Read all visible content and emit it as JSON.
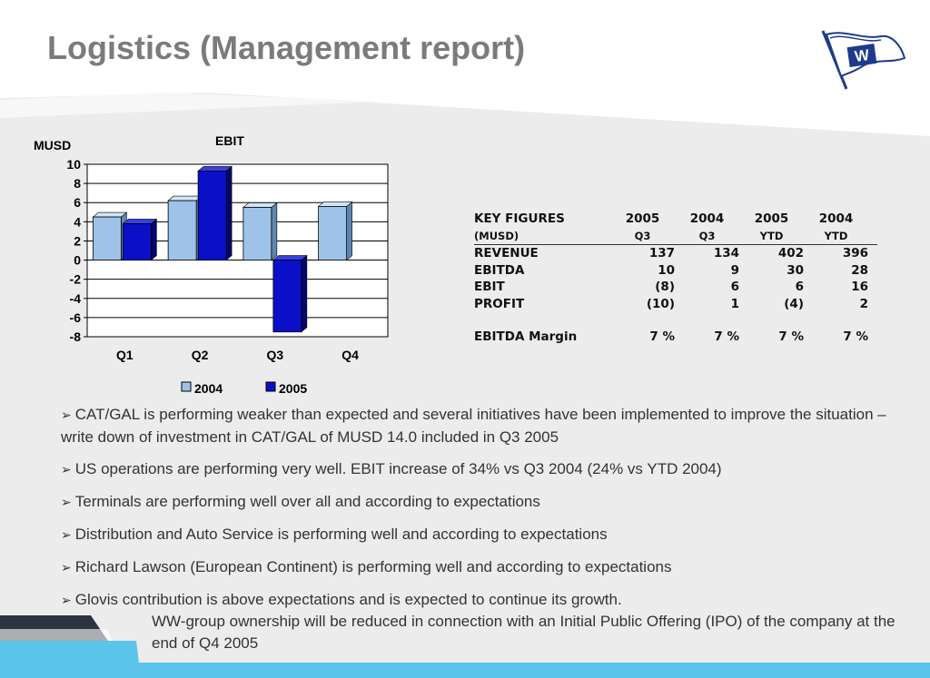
{
  "slide": {
    "title": "Logistics (Management report)",
    "colors": {
      "series_2004": "#9fc3e8",
      "series_2005": "#0a10c8",
      "accent_stripe": "#5bc4ea",
      "dark_stripe": "#2c3440"
    }
  },
  "logo": {
    "icon": "flag-w-icon",
    "letter": "W"
  },
  "chart_data": {
    "type": "bar",
    "title": "EBIT",
    "ylabel": "MUSD",
    "xlabel": "",
    "categories": [
      "Q1",
      "Q2",
      "Q3",
      "Q4"
    ],
    "series": [
      {
        "name": "2004",
        "values": [
          4.5,
          6.2,
          5.5,
          5.6
        ],
        "color": "#9fc3e8"
      },
      {
        "name": "2005",
        "values": [
          3.8,
          9.3,
          -7.5,
          null
        ],
        "color": "#0a10c8"
      }
    ],
    "ylim": [
      -8,
      10
    ],
    "yticks": [
      10,
      8,
      6,
      4,
      2,
      0,
      -2,
      -4,
      -6,
      -8
    ],
    "grid": true,
    "legend": "bottom"
  },
  "key_figures": {
    "header": [
      "KEY FIGURES",
      "2005",
      "2004",
      "2005",
      "2004"
    ],
    "subheader": [
      "(MUSD)",
      "Q3",
      "Q3",
      "YTD",
      "YTD"
    ],
    "rows": [
      [
        "REVENUE",
        "137",
        "134",
        "402",
        "396"
      ],
      [
        "EBITDA",
        "10",
        "9",
        "30",
        "28"
      ],
      [
        "EBIT",
        "(8)",
        "6",
        "6",
        "16"
      ],
      [
        "PROFIT",
        "(10)",
        "1",
        "(4)",
        "2"
      ]
    ],
    "margin_row": [
      "EBITDA Margin",
      "7 %",
      "7 %",
      "7 %",
      "7 %"
    ]
  },
  "bullets": [
    "CAT/GAL is performing weaker than expected and several initiatives have been implemented to improve the situation – write down of investment in CAT/GAL of MUSD 14.0 included in Q3 2005",
    "US operations are performing very well. EBIT increase of 34% vs Q3 2004 (24% vs YTD 2004)",
    "Terminals are performing well over all and according to expectations",
    "Distribution and Auto Service is performing well and according to expectations",
    "Richard Lawson (European Continent) is performing well and according to expectations",
    "Glovis contribution is above expectations and is expected to continue its growth."
  ],
  "bullet_continuation": "WW-group ownership will be reduced in connection with an Initial Public Offering  (IPO) of the company at the end of Q4 2005",
  "bullet_marker": "➢"
}
